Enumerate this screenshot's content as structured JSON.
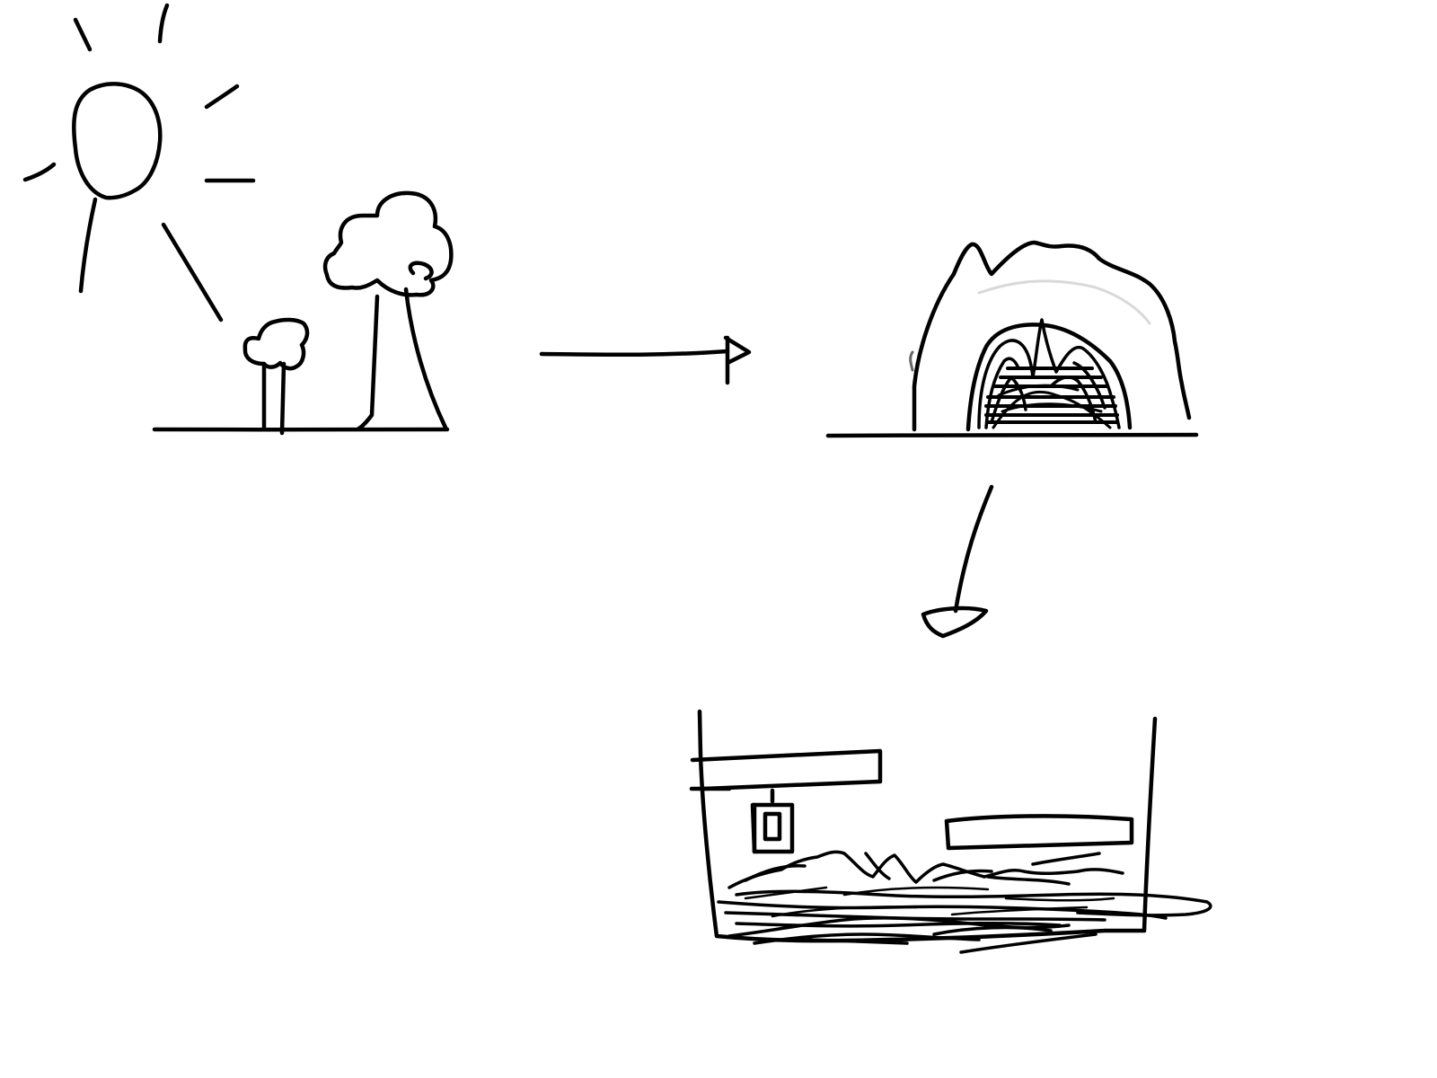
{
  "diagram": {
    "ink_color": "#000000",
    "background_color": "#ffffff",
    "panels": [
      {
        "id": "sunny-landscape",
        "depicts": [
          "sun-icon",
          "small-tree-icon",
          "large-tree-icon",
          "ground-line"
        ]
      },
      {
        "id": "cave",
        "depicts": [
          "cave-icon",
          "cave-entrance",
          "ground-line"
        ]
      },
      {
        "id": "cross-section",
        "depicts": [
          "container-walls",
          "upper-shelf",
          "lantern-icon",
          "lower-shelf",
          "hay-bedding"
        ]
      }
    ],
    "arrows": [
      {
        "from": "sunny-landscape",
        "to": "cave",
        "direction": "right"
      },
      {
        "from": "cave",
        "to": "cross-section",
        "direction": "down"
      }
    ]
  }
}
